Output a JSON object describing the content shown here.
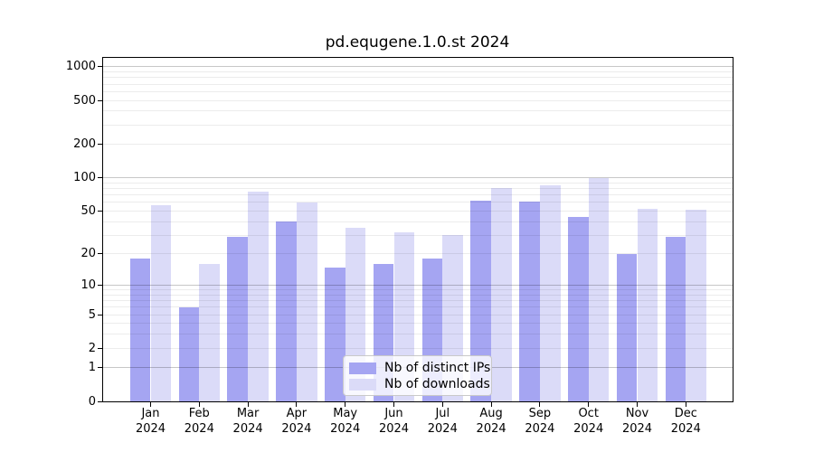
{
  "title": "pd.equgene.1.0.st 2024",
  "chart_data": {
    "type": "bar",
    "title": "pd.equgene.1.0.st 2024",
    "categories": [
      "Jan",
      "Feb",
      "Mar",
      "Apr",
      "May",
      "Jun",
      "Jul",
      "Aug",
      "Sep",
      "Oct",
      "Nov",
      "Dec"
    ],
    "xtick_year": "2024",
    "series": [
      {
        "name": "Nb of distinct IPs",
        "key": "ips",
        "color": "#a5a5f2",
        "values": [
          18,
          6,
          29,
          40,
          15,
          16,
          18,
          62,
          61,
          44,
          20,
          29
        ]
      },
      {
        "name": "Nb of downloads",
        "key": "downloads",
        "color": "#dbdbf8",
        "values": [
          57,
          16,
          75,
          60,
          35,
          32,
          30,
          81,
          86,
          100,
          52,
          51
        ]
      }
    ],
    "xlabel": "",
    "ylabel": "",
    "yscale": "log1p",
    "yticks": [
      0,
      1,
      2,
      5,
      10,
      20,
      50,
      100,
      200,
      500,
      1000
    ],
    "major_gridlines": [
      1,
      10,
      100,
      1000
    ],
    "minor_gridlines": [
      2,
      3,
      4,
      5,
      6,
      7,
      8,
      9,
      20,
      30,
      40,
      50,
      60,
      70,
      80,
      90,
      200,
      300,
      400,
      500,
      600,
      700,
      800,
      900
    ],
    "ylim": [
      0,
      1230
    ],
    "grid": true,
    "legend_position": "lower center"
  }
}
